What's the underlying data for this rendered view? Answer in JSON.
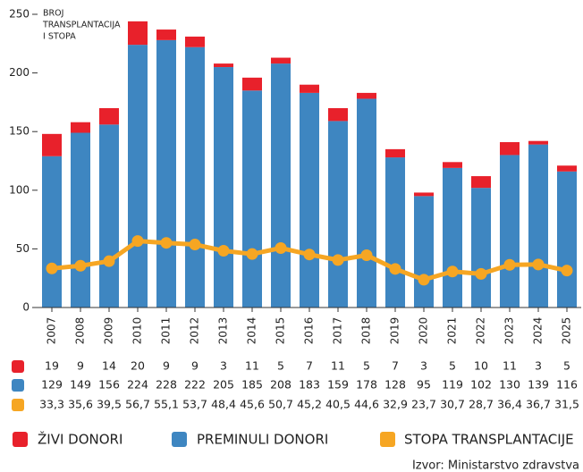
{
  "chart_data": {
    "type": "bar",
    "y_label": [
      "BROJ",
      "TRANSPLANTACIJA",
      "I STOPA"
    ],
    "categories": [
      "2007",
      "2008",
      "2009",
      "2010",
      "2011",
      "2012",
      "2013",
      "2014",
      "2015",
      "2016",
      "2017",
      "2018",
      "2019",
      "2020",
      "2021",
      "2022",
      "2023",
      "2024",
      "2025"
    ],
    "series": [
      {
        "name": "ŽIVI DONORI",
        "type": "bar",
        "color": "#e8212b",
        "values": [
          19,
          9,
          14,
          20,
          9,
          9,
          3,
          11,
          5,
          7,
          11,
          5,
          7,
          3,
          5,
          10,
          11,
          3,
          5
        ]
      },
      {
        "name": "PREMINULI DONORI",
        "type": "bar",
        "color": "#3e86c1",
        "values": [
          129,
          149,
          156,
          224,
          228,
          222,
          205,
          185,
          208,
          183,
          159,
          178,
          128,
          95,
          119,
          102,
          130,
          139,
          116
        ]
      },
      {
        "name": "STOPA TRANSPLANTACIJE",
        "type": "line",
        "color": "#f6a623",
        "values": [
          33.3,
          35.6,
          39.5,
          56.7,
          55.1,
          53.7,
          48.4,
          45.6,
          50.7,
          45.2,
          40.5,
          44.6,
          32.9,
          23.7,
          30.7,
          28.7,
          36.4,
          36.7,
          31.5
        ],
        "value_labels": [
          "33,3",
          "35,6",
          "39,5",
          "56,7",
          "55,1",
          "53,7",
          "48,4",
          "45,6",
          "50,7",
          "45,2",
          "40,5",
          "44,6",
          "32,9",
          "23,7",
          "30,7",
          "28,7",
          "36,4",
          "36,7",
          "31,5"
        ]
      }
    ],
    "ylim": [
      0,
      250
    ],
    "yticks": [
      0,
      50,
      100,
      150,
      200,
      250
    ],
    "source": "Izvor: Ministarstvo zdravstva"
  }
}
